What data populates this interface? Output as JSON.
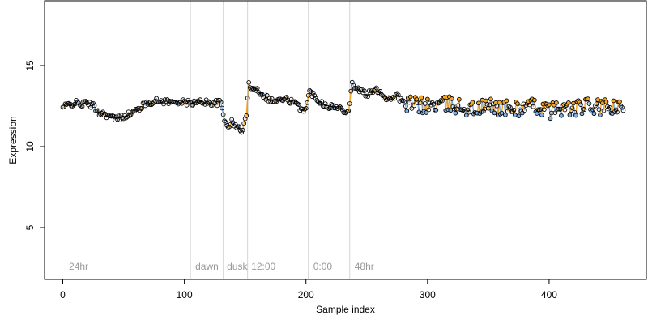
{
  "chart_data": {
    "type": "scatter",
    "xlabel": "Sample index",
    "ylabel": "Expression",
    "xlim": [
      -15,
      480
    ],
    "ylim": [
      1.8,
      19.0
    ],
    "x_ticks": [
      0,
      100,
      200,
      300,
      400
    ],
    "y_ticks": [
      5,
      10,
      15
    ],
    "grid": false,
    "region_lines": [
      105,
      132,
      152,
      202,
      236
    ],
    "region_labels": [
      {
        "x": 3,
        "text": "24hr"
      },
      {
        "x": 107,
        "text": "dawn"
      },
      {
        "x": 133,
        "text": "dusk"
      },
      {
        "x": 153,
        "text": "12:00"
      },
      {
        "x": 204,
        "text": "0:00"
      },
      {
        "x": 238,
        "text": "48hr"
      }
    ],
    "colors": {
      "above": "#F5A623",
      "below": "#7FAEE8",
      "point_edge": "#000000",
      "divider": "#D3D3D3",
      "connector": "#A6A6A6"
    },
    "anchors": [
      [
        0,
        12.4
      ],
      [
        5,
        12.6
      ],
      [
        10,
        12.7
      ],
      [
        15,
        12.6
      ],
      [
        20,
        12.7
      ],
      [
        25,
        12.5
      ],
      [
        30,
        12.1
      ],
      [
        35,
        12.0
      ],
      [
        40,
        11.8
      ],
      [
        45,
        11.7
      ],
      [
        50,
        11.9
      ],
      [
        55,
        12.0
      ],
      [
        60,
        12.2
      ],
      [
        65,
        12.5
      ],
      [
        70,
        12.7
      ],
      [
        75,
        12.8
      ],
      [
        80,
        12.8
      ],
      [
        85,
        12.8
      ],
      [
        90,
        12.7
      ],
      [
        95,
        12.8
      ],
      [
        100,
        12.7
      ],
      [
        105,
        12.7
      ],
      [
        110,
        12.7
      ],
      [
        115,
        12.8
      ],
      [
        120,
        12.7
      ],
      [
        125,
        12.7
      ],
      [
        130,
        12.7
      ],
      [
        133,
        11.6
      ],
      [
        136,
        11.3
      ],
      [
        139,
        11.5
      ],
      [
        142,
        11.3
      ],
      [
        145,
        11.1
      ],
      [
        148,
        11.0
      ],
      [
        151,
        12.0
      ],
      [
        153,
        13.8
      ],
      [
        156,
        13.7
      ],
      [
        160,
        13.5
      ],
      [
        165,
        13.2
      ],
      [
        170,
        12.9
      ],
      [
        175,
        12.8
      ],
      [
        180,
        12.9
      ],
      [
        185,
        12.9
      ],
      [
        190,
        12.7
      ],
      [
        195,
        12.4
      ],
      [
        200,
        12.3
      ],
      [
        203,
        13.4
      ],
      [
        206,
        13.2
      ],
      [
        210,
        12.9
      ],
      [
        215,
        12.6
      ],
      [
        220,
        12.5
      ],
      [
        225,
        12.4
      ],
      [
        230,
        12.3
      ],
      [
        235,
        12.2
      ],
      [
        238,
        13.9
      ],
      [
        242,
        13.6
      ],
      [
        246,
        13.4
      ],
      [
        250,
        13.2
      ],
      [
        255,
        13.4
      ],
      [
        260,
        13.5
      ],
      [
        265,
        13.0
      ],
      [
        270,
        13.0
      ],
      [
        275,
        13.2
      ],
      [
        280,
        12.6
      ],
      [
        285,
        12.6
      ],
      [
        290,
        12.6
      ],
      [
        300,
        12.5
      ],
      [
        310,
        12.6
      ],
      [
        320,
        12.6
      ],
      [
        330,
        12.4
      ],
      [
        340,
        12.3
      ],
      [
        350,
        12.5
      ],
      [
        360,
        12.4
      ],
      [
        370,
        12.3
      ],
      [
        380,
        12.4
      ],
      [
        390,
        12.5
      ],
      [
        400,
        12.2
      ],
      [
        410,
        12.4
      ],
      [
        420,
        12.3
      ],
      [
        430,
        12.5
      ],
      [
        440,
        12.4
      ],
      [
        450,
        12.4
      ],
      [
        460,
        12.3
      ]
    ]
  }
}
